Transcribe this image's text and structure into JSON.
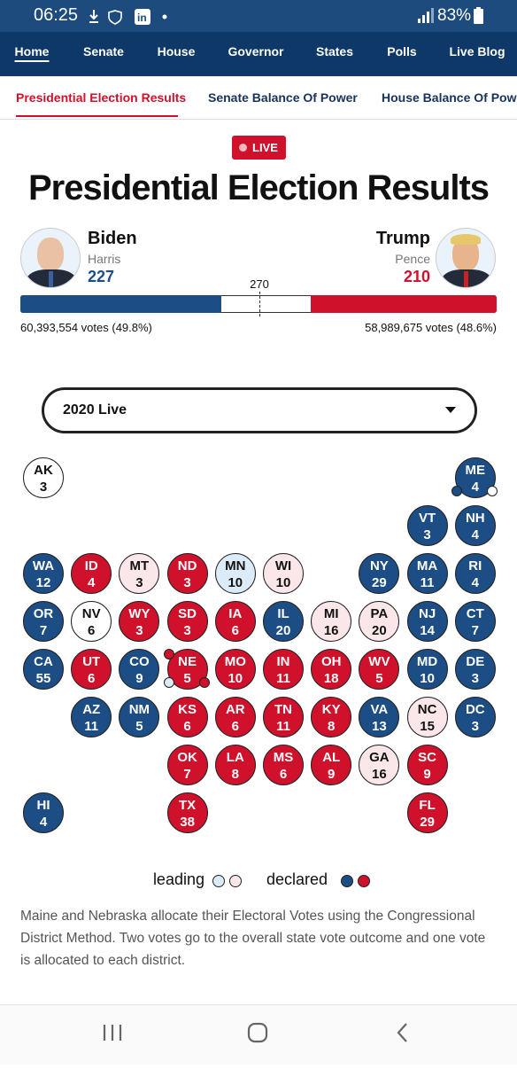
{
  "status_bar": {
    "time": "06:25",
    "battery": "83%"
  },
  "nav": {
    "items": [
      "Home",
      "Senate",
      "House",
      "Governor",
      "States",
      "Polls",
      "Live Blog"
    ]
  },
  "subnav": {
    "items": [
      "Presidential Election Results",
      "Senate Balance Of Power",
      "House Balance Of Powe"
    ]
  },
  "badge": "LIVE",
  "title": "Presidential Election Results",
  "threshold": 270,
  "candidates": [
    {
      "name": "Biden",
      "running_mate": "Harris",
      "electoral_votes": 227,
      "votes_label": "60,393,554 votes (49.8%)",
      "color": "#1c4d84"
    },
    {
      "name": "Trump",
      "running_mate": "Pence",
      "electoral_votes": 210,
      "votes_label": "58,989,675 votes (48.6%)",
      "color": "#d0112b"
    }
  ],
  "dropdown": "2020 Live",
  "status_colors": {
    "declared-dem": "#1c4d84",
    "declared-rep": "#d0112b",
    "leading-dem": "#dcebf8",
    "leading-rep": "#fbe7ea",
    "undecided": "#ffffff"
  },
  "states": [
    {
      "abbr": "AK",
      "ev": 3,
      "status": "undecided"
    },
    {
      "abbr": "ME",
      "ev": 4,
      "status": "declared-dem"
    },
    {
      "abbr": "VT",
      "ev": 3,
      "status": "declared-dem"
    },
    {
      "abbr": "NH",
      "ev": 4,
      "status": "declared-dem"
    },
    {
      "abbr": "WA",
      "ev": 12,
      "status": "declared-dem"
    },
    {
      "abbr": "ID",
      "ev": 4,
      "status": "declared-rep"
    },
    {
      "abbr": "MT",
      "ev": 3,
      "status": "leading-rep"
    },
    {
      "abbr": "ND",
      "ev": 3,
      "status": "declared-rep"
    },
    {
      "abbr": "MN",
      "ev": 10,
      "status": "leading-dem"
    },
    {
      "abbr": "WI",
      "ev": 10,
      "status": "leading-rep"
    },
    {
      "abbr": "NY",
      "ev": 29,
      "status": "declared-dem"
    },
    {
      "abbr": "MA",
      "ev": 11,
      "status": "declared-dem"
    },
    {
      "abbr": "RI",
      "ev": 4,
      "status": "declared-dem"
    },
    {
      "abbr": "OR",
      "ev": 7,
      "status": "declared-dem"
    },
    {
      "abbr": "NV",
      "ev": 6,
      "status": "undecided"
    },
    {
      "abbr": "WY",
      "ev": 3,
      "status": "declared-rep"
    },
    {
      "abbr": "SD",
      "ev": 3,
      "status": "declared-rep"
    },
    {
      "abbr": "IA",
      "ev": 6,
      "status": "declared-rep"
    },
    {
      "abbr": "IL",
      "ev": 20,
      "status": "declared-dem"
    },
    {
      "abbr": "MI",
      "ev": 16,
      "status": "leading-rep"
    },
    {
      "abbr": "PA",
      "ev": 20,
      "status": "leading-rep"
    },
    {
      "abbr": "NJ",
      "ev": 14,
      "status": "declared-dem"
    },
    {
      "abbr": "CT",
      "ev": 7,
      "status": "declared-dem"
    },
    {
      "abbr": "CA",
      "ev": 55,
      "status": "declared-dem"
    },
    {
      "abbr": "UT",
      "ev": 6,
      "status": "declared-rep"
    },
    {
      "abbr": "CO",
      "ev": 9,
      "status": "declared-dem"
    },
    {
      "abbr": "NE",
      "ev": 5,
      "status": "declared-rep"
    },
    {
      "abbr": "MO",
      "ev": 10,
      "status": "declared-rep"
    },
    {
      "abbr": "IN",
      "ev": 11,
      "status": "declared-rep"
    },
    {
      "abbr": "OH",
      "ev": 18,
      "status": "declared-rep"
    },
    {
      "abbr": "WV",
      "ev": 5,
      "status": "declared-rep"
    },
    {
      "abbr": "MD",
      "ev": 10,
      "status": "declared-dem"
    },
    {
      "abbr": "DE",
      "ev": 3,
      "status": "declared-dem"
    },
    {
      "abbr": "AZ",
      "ev": 11,
      "status": "declared-dem"
    },
    {
      "abbr": "NM",
      "ev": 5,
      "status": "declared-dem"
    },
    {
      "abbr": "KS",
      "ev": 6,
      "status": "declared-rep"
    },
    {
      "abbr": "AR",
      "ev": 6,
      "status": "declared-rep"
    },
    {
      "abbr": "TN",
      "ev": 11,
      "status": "declared-rep"
    },
    {
      "abbr": "KY",
      "ev": 8,
      "status": "declared-rep"
    },
    {
      "abbr": "VA",
      "ev": 13,
      "status": "declared-dem"
    },
    {
      "abbr": "NC",
      "ev": 15,
      "status": "leading-rep"
    },
    {
      "abbr": "DC",
      "ev": 3,
      "status": "declared-dem"
    },
    {
      "abbr": "OK",
      "ev": 7,
      "status": "declared-rep"
    },
    {
      "abbr": "LA",
      "ev": 8,
      "status": "declared-rep"
    },
    {
      "abbr": "MS",
      "ev": 6,
      "status": "declared-rep"
    },
    {
      "abbr": "AL",
      "ev": 9,
      "status": "declared-rep"
    },
    {
      "abbr": "GA",
      "ev": 16,
      "status": "leading-rep"
    },
    {
      "abbr": "SC",
      "ev": 9,
      "status": "declared-rep"
    },
    {
      "abbr": "HI",
      "ev": 4,
      "status": "declared-dem"
    },
    {
      "abbr": "TX",
      "ev": 38,
      "status": "declared-rep"
    },
    {
      "abbr": "FL",
      "ev": 29,
      "status": "declared-rep"
    }
  ],
  "legend": {
    "leading": "leading",
    "declared": "declared"
  },
  "note": "Maine and Nebraska allocate their Electoral Votes using the Congressional District Method. Two votes go to the overall state vote outcome and one vote is allocated to each district."
}
